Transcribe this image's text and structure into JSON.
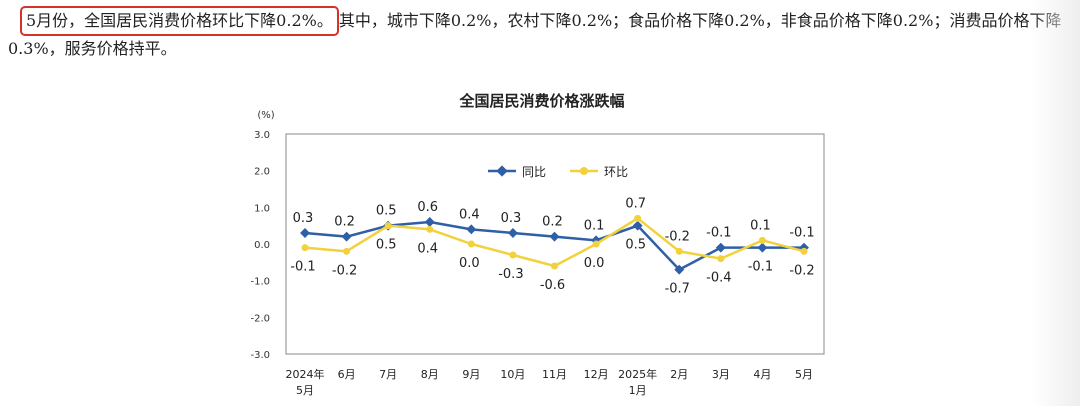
{
  "article": {
    "highlight": "5月份，全国居民消费价格环比下降0.2%。",
    "rest": "其中，城市下降0.2%，农村下降0.2%；食品价格下降0.2%，非食品价格下降0.2%；消费品价格下降0.3%，服务价格持平。"
  },
  "colors": {
    "highlight_box": "#d7322a",
    "series_yoy": "#2e5fa7",
    "series_mom": "#f2d13d"
  },
  "chart_data": {
    "type": "line",
    "title": "全国居民消费价格涨跌幅",
    "ylabel": "(%)",
    "ylim": [
      -3.0,
      3.0
    ],
    "yticks": [
      "3.0",
      "2.0",
      "1.0",
      "0.0",
      "-1.0",
      "-2.0",
      "-3.0"
    ],
    "categories": [
      [
        "2024年",
        "5月"
      ],
      [
        "6月"
      ],
      [
        "7月"
      ],
      [
        "8月"
      ],
      [
        "9月"
      ],
      [
        "10月"
      ],
      [
        "11月"
      ],
      [
        "12月"
      ],
      [
        "2025年",
        "1月"
      ],
      [
        "2月"
      ],
      [
        "3月"
      ],
      [
        "4月"
      ],
      [
        "5月"
      ]
    ],
    "series": [
      {
        "name": "同比",
        "values": [
          0.3,
          0.2,
          0.5,
          0.6,
          0.4,
          0.3,
          0.2,
          0.1,
          0.5,
          -0.7,
          -0.1,
          -0.1,
          -0.1
        ],
        "labels": [
          "0.3",
          "0.2",
          "0.5",
          "0.6",
          "0.4",
          "0.3",
          "0.2",
          "0.1",
          "0.5",
          "-0.7",
          "-0.1",
          "-0.1",
          "-0.1"
        ]
      },
      {
        "name": "环比",
        "values": [
          -0.1,
          -0.2,
          0.5,
          0.4,
          0.0,
          -0.3,
          -0.6,
          0.0,
          0.7,
          -0.2,
          -0.4,
          0.1,
          -0.2
        ],
        "labels": [
          "-0.1",
          "-0.2",
          "0.5",
          "0.4",
          "0.0",
          "-0.3",
          "-0.6",
          "0.0",
          "0.7",
          "-0.2",
          "-0.4",
          "0.1",
          "-0.2"
        ]
      }
    ],
    "grid": false,
    "legend": "top-left"
  }
}
